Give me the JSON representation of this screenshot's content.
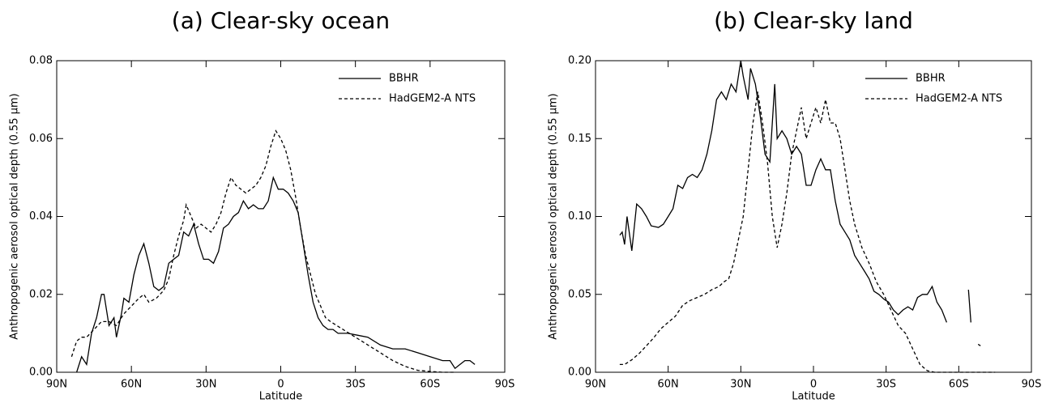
{
  "chart_data": [
    {
      "type": "line",
      "title": "(a) Clear-sky  ocean",
      "x_label": "Latitude",
      "y_label": "Anthropogenic aerosol optical depth (0.55 μm)",
      "xlim": [
        90,
        -90
      ],
      "xticks": [
        {
          "value": 90,
          "label": "90N"
        },
        {
          "value": 60,
          "label": "60N"
        },
        {
          "value": 30,
          "label": "30N"
        },
        0,
        {
          "value": -30,
          "label": "30S"
        },
        {
          "value": -60,
          "label": "60S"
        },
        {
          "value": -90,
          "label": "90S"
        }
      ],
      "ylim": [
        0,
        0.08
      ],
      "yticks": [
        {
          "value": 0,
          "label": "0.00"
        },
        {
          "value": 0.02,
          "label": "0.02"
        },
        {
          "value": 0.04,
          "label": "0.04"
        },
        {
          "value": 0.06,
          "label": "0.06"
        },
        {
          "value": 0.08,
          "label": "0.08"
        }
      ],
      "legend": "upper right",
      "series": [
        {
          "name": "BBHR",
          "color": "#000000",
          "line_style": "solid",
          "x": [
            82,
            80,
            78,
            76,
            74,
            72,
            71,
            69,
            67,
            66,
            64,
            63,
            61,
            59,
            57,
            55,
            53,
            51,
            49,
            47,
            45,
            43,
            41,
            39,
            37,
            35,
            33,
            31,
            29,
            27,
            25,
            23,
            21,
            19,
            17,
            15,
            13,
            11,
            9,
            7,
            5,
            3,
            1,
            -1,
            -3,
            -5,
            -7,
            -9,
            -11,
            -13,
            -15,
            -17,
            -19,
            -21,
            -23,
            -27,
            -31,
            -35,
            -40,
            -45,
            -50,
            -55,
            -60,
            -65,
            -68,
            -70,
            -72,
            -74,
            -76,
            -78
          ],
          "values": [
            0,
            0.004,
            0.002,
            0.01,
            0.014,
            0.02,
            0.02,
            0.012,
            0.014,
            0.009,
            0.015,
            0.019,
            0.018,
            0.025,
            0.03,
            0.033,
            0.028,
            0.022,
            0.021,
            0.022,
            0.028,
            0.029,
            0.03,
            0.036,
            0.035,
            0.038,
            0.033,
            0.029,
            0.029,
            0.028,
            0.031,
            0.037,
            0.038,
            0.04,
            0.041,
            0.044,
            0.042,
            0.043,
            0.042,
            0.042,
            0.044,
            0.05,
            0.047,
            0.047,
            0.046,
            0.044,
            0.041,
            0.033,
            0.025,
            0.018,
            0.014,
            0.012,
            0.011,
            0.011,
            0.01,
            0.01,
            0.0095,
            0.009,
            0.007,
            0.006,
            0.006,
            0.005,
            0.004,
            0.003,
            0.003,
            0.001,
            0.002,
            0.003,
            0.003,
            0.002
          ]
        },
        {
          "name": "HadGEM2-A NTS",
          "color": "#000000",
          "line_style": "dashed",
          "x": [
            84,
            82,
            80,
            78,
            75,
            72,
            69,
            66,
            63,
            60,
            57,
            55,
            53,
            50,
            47,
            45,
            43,
            41,
            39,
            38,
            36,
            34,
            32,
            30,
            28,
            26,
            24,
            22,
            20,
            18,
            16,
            14,
            12,
            10,
            8,
            6,
            4,
            2,
            0,
            -2,
            -4,
            -6,
            -8,
            -10,
            -12,
            -14,
            -16,
            -18,
            -20,
            -25,
            -30,
            -35,
            -40,
            -45,
            -50,
            -55,
            -60,
            -65,
            -70
          ],
          "values": [
            0.004,
            0.008,
            0.009,
            0.009,
            0.011,
            0.013,
            0.013,
            0.012,
            0.015,
            0.017,
            0.019,
            0.02,
            0.018,
            0.019,
            0.021,
            0.024,
            0.03,
            0.035,
            0.039,
            0.043,
            0.04,
            0.037,
            0.038,
            0.037,
            0.036,
            0.038,
            0.041,
            0.046,
            0.05,
            0.048,
            0.047,
            0.046,
            0.047,
            0.048,
            0.05,
            0.053,
            0.058,
            0.062,
            0.06,
            0.057,
            0.052,
            0.045,
            0.037,
            0.03,
            0.025,
            0.02,
            0.017,
            0.014,
            0.013,
            0.011,
            0.009,
            0.007,
            0.005,
            0.003,
            0.0015,
            0.0005,
            0.0002,
            0,
            0
          ]
        }
      ]
    },
    {
      "type": "line",
      "title": "(b) Clear-sky land",
      "x_label": "Latitude",
      "y_label": "Anthropogenic aerosol optical depth (0.55 μm)",
      "xlim": [
        90,
        -90
      ],
      "xticks": [
        {
          "value": 90,
          "label": "90N"
        },
        {
          "value": 60,
          "label": "60N"
        },
        {
          "value": 30,
          "label": "30N"
        },
        0,
        {
          "value": -30,
          "label": "30S"
        },
        {
          "value": -60,
          "label": "60S"
        },
        {
          "value": -90,
          "label": "90S"
        }
      ],
      "ylim": [
        0,
        0.2
      ],
      "yticks": [
        {
          "value": 0,
          "label": "0.00"
        },
        {
          "value": 0.05,
          "label": "0.05"
        },
        {
          "value": 0.1,
          "label": "0.10"
        },
        {
          "value": 0.15,
          "label": "0.15"
        },
        {
          "value": 0.2,
          "label": "0.20"
        }
      ],
      "legend": "upper right",
      "series": [
        {
          "name": "BBHR",
          "color": "#000000",
          "line_style": "solid",
          "x": [
            80,
            79,
            78,
            77,
            75,
            73,
            71,
            69,
            67,
            64,
            62,
            60,
            58,
            56,
            54,
            52,
            50,
            48,
            46,
            44,
            42,
            40,
            38,
            36,
            34,
            32,
            30,
            29,
            27,
            26,
            24,
            22,
            20,
            18,
            16,
            15,
            13,
            11,
            9,
            7,
            5,
            3,
            1,
            -1,
            -3,
            -5,
            -7,
            -9,
            -11,
            -13,
            -15,
            -17,
            -19,
            -21,
            -23,
            -25,
            -27,
            -29,
            -31,
            -33,
            -35,
            -37,
            -39,
            -41,
            -43,
            -45,
            -47,
            -49,
            -51,
            -53,
            -55,
            -57,
            -64,
            -65,
            -67,
            -68,
            -69
          ],
          "values": [
            0.088,
            0.09,
            0.082,
            0.1,
            0.078,
            0.108,
            0.105,
            0.1,
            0.094,
            0.093,
            0.095,
            0.1,
            0.105,
            0.12,
            0.118,
            0.125,
            0.127,
            0.125,
            0.13,
            0.14,
            0.155,
            0.175,
            0.18,
            0.175,
            0.185,
            0.18,
            0.2,
            0.19,
            0.175,
            0.195,
            0.185,
            0.165,
            0.14,
            0.135,
            0.185,
            0.15,
            0.155,
            0.15,
            0.14,
            0.145,
            0.14,
            0.12,
            0.12,
            0.13,
            0.137,
            0.13,
            0.13,
            0.11,
            0.095,
            0.09,
            0.085,
            0.075,
            0.07,
            0.065,
            0.06,
            0.052,
            0.05,
            0.047,
            0.045,
            0.04,
            0.037,
            0.04,
            0.042,
            0.04,
            0.048,
            0.05,
            0.05,
            0.055,
            0.045,
            0.04,
            0.032,
            null,
            0.053,
            0.032,
            null,
            0.018,
            0.017
          ]
        },
        {
          "name": "HadGEM2-A NTS",
          "color": "#000000",
          "line_style": "dashed",
          "x": [
            80,
            78,
            75,
            72,
            69,
            66,
            63,
            60,
            57,
            54,
            51,
            48,
            45,
            42,
            39,
            37,
            35,
            33,
            31,
            29,
            27,
            25,
            23,
            21,
            19,
            17,
            15,
            13,
            11,
            9,
            7,
            5,
            3,
            1,
            -1,
            -3,
            -5,
            -7,
            -9,
            -11,
            -13,
            -15,
            -17,
            -20,
            -23,
            -26,
            -29,
            -32,
            -35,
            -38,
            -41,
            -44,
            -47,
            -50,
            -55,
            -60,
            -65,
            -70,
            -75
          ],
          "values": [
            0.005,
            0.005,
            0.008,
            0.012,
            0.017,
            0.022,
            0.028,
            0.032,
            0.036,
            0.043,
            0.046,
            0.048,
            0.05,
            0.053,
            0.055,
            0.058,
            0.06,
            0.07,
            0.085,
            0.1,
            0.13,
            0.16,
            0.18,
            0.16,
            0.135,
            0.1,
            0.08,
            0.095,
            0.115,
            0.14,
            0.155,
            0.17,
            0.15,
            0.16,
            0.17,
            0.16,
            0.175,
            0.16,
            0.16,
            0.15,
            0.13,
            0.11,
            0.095,
            0.08,
            0.07,
            0.058,
            0.05,
            0.04,
            0.03,
            0.025,
            0.015,
            0.005,
            0.001,
            0,
            0,
            0,
            0,
            0,
            0
          ]
        }
      ]
    }
  ]
}
